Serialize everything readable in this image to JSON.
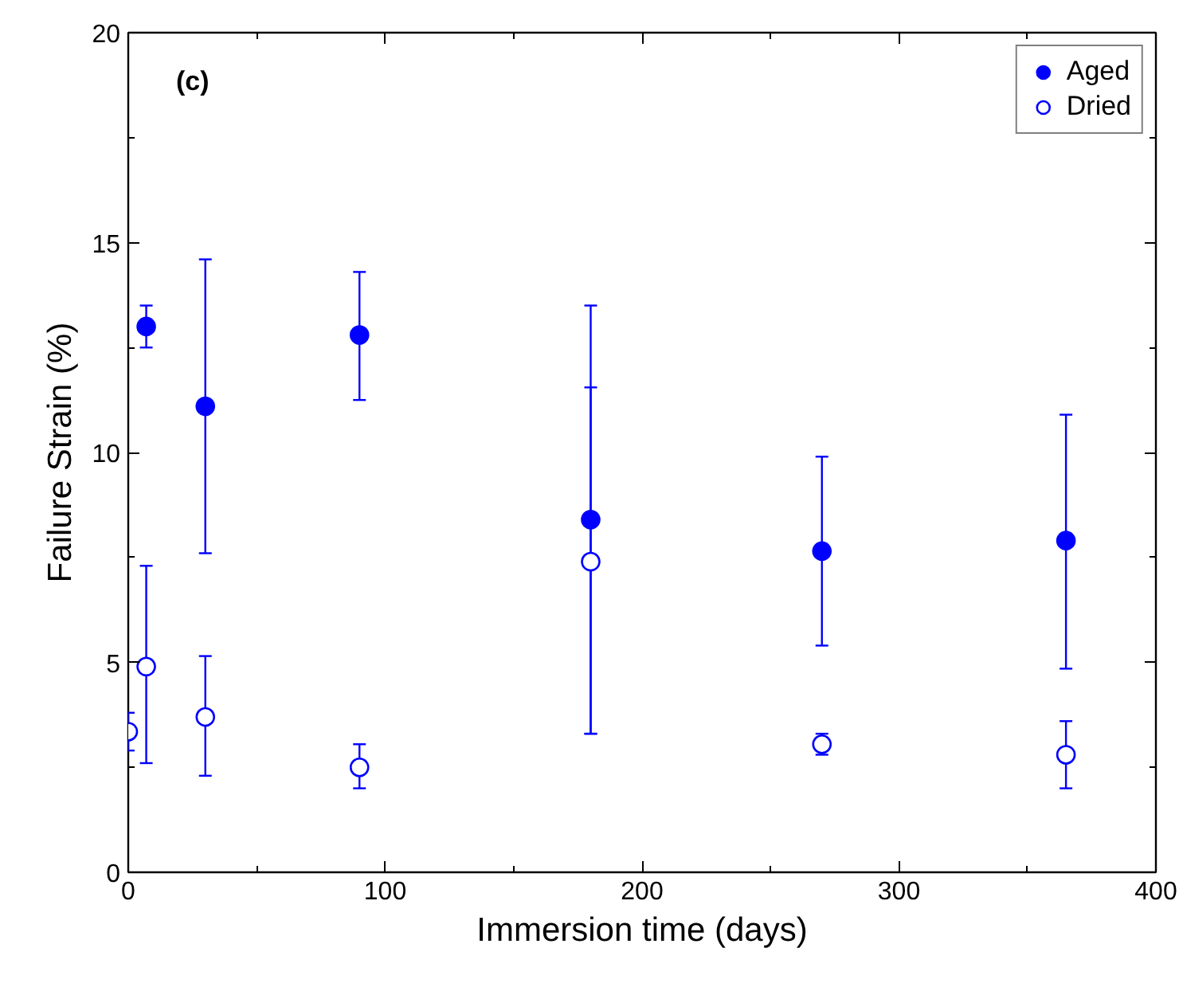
{
  "chart_data": {
    "type": "scatter",
    "xlabel": "Immersion time (days)",
    "ylabel": "Failure Strain (%)",
    "annotations": [
      "(c)"
    ],
    "xlim": [
      0,
      400
    ],
    "ylim": [
      0,
      20
    ],
    "xticks": [
      0,
      100,
      200,
      300,
      400
    ],
    "yticks": [
      0,
      5,
      10,
      15,
      20
    ],
    "grid": false,
    "legend": "top right",
    "marker": "circle",
    "series": [
      {
        "name": "Aged",
        "color": "#0000ff",
        "x": [
          7,
          30,
          90,
          180,
          270,
          365
        ],
        "values": [
          13.0,
          11.1,
          12.8,
          8.4,
          7.65,
          7.9
        ],
        "errors": [
          [
            12.5,
            13.5
          ],
          [
            7.6,
            14.6
          ],
          [
            11.25,
            14.3
          ],
          [
            3.3,
            13.5
          ],
          [
            5.4,
            9.9
          ],
          [
            4.85,
            10.9
          ]
        ]
      },
      {
        "name": "Dried",
        "color": "#0000ff",
        "x": [
          0,
          7,
          30,
          90,
          180,
          270,
          365
        ],
        "values": [
          3.35,
          4.9,
          3.7,
          2.5,
          7.4,
          3.05,
          2.8
        ],
        "errors": [
          [
            2.9,
            3.8
          ],
          [
            2.6,
            7.3
          ],
          [
            2.3,
            5.15
          ],
          [
            2.0,
            3.05
          ],
          [
            3.3,
            11.55
          ],
          [
            2.8,
            3.3
          ],
          [
            2.0,
            3.6
          ]
        ]
      }
    ]
  }
}
